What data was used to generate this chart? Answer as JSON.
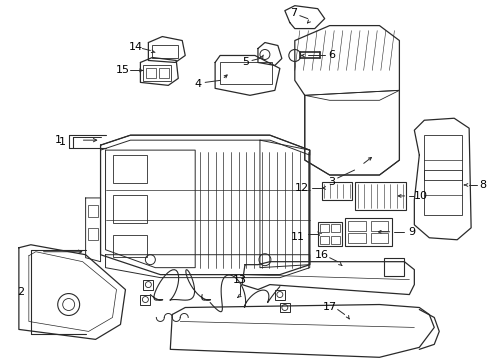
{
  "bg_color": "#ffffff",
  "line_color": "#2a2a2a",
  "text_color": "#000000",
  "fig_width": 4.9,
  "fig_height": 3.6,
  "dpi": 100
}
